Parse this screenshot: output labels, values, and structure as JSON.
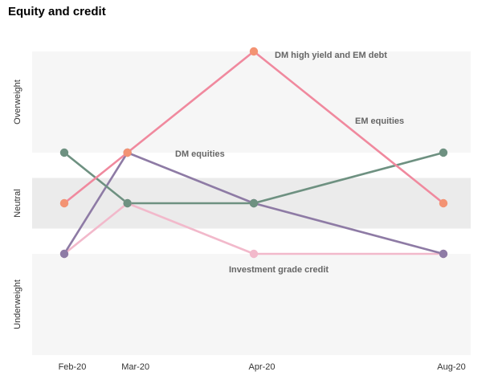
{
  "chart_data": {
    "type": "line",
    "title": "Equity and credit",
    "categories": [
      "Feb-20",
      "Mar-20",
      "Apr-20",
      "Aug-20"
    ],
    "category_positions": [
      0,
      1,
      3,
      6
    ],
    "bands": [
      {
        "label": "Overweight",
        "range": [
          1,
          3
        ]
      },
      {
        "label": "Neutral",
        "range": [
          -0.5,
          0.5
        ]
      },
      {
        "label": "Underweight",
        "range": [
          -3,
          -1
        ]
      }
    ],
    "ylim": [
      -3,
      3
    ],
    "series": [
      {
        "name": "DM high yield and EM debt",
        "color": "#f0899e",
        "marker": "#f39373",
        "points": [
          [
            0,
            0
          ],
          [
            1,
            1
          ],
          [
            3,
            3
          ],
          [
            6,
            0
          ]
        ]
      },
      {
        "name": "EM equities",
        "color": "#6e9181",
        "marker": "#6e9181",
        "points": [
          [
            0,
            1
          ],
          [
            1,
            0
          ],
          [
            3,
            0
          ],
          [
            6,
            1
          ]
        ]
      },
      {
        "name": "DM equities",
        "color": "#8e7ba5",
        "marker": "#8e7ba5",
        "points": [
          [
            0,
            -1
          ],
          [
            1,
            1
          ],
          [
            3,
            0
          ],
          [
            6,
            -1
          ]
        ]
      },
      {
        "name": "Investment grade credit",
        "color": "#f2b9cb",
        "marker": "#f2b9cb",
        "points": [
          [
            0,
            -1
          ],
          [
            1,
            0
          ],
          [
            3,
            -1
          ],
          [
            6,
            -1
          ]
        ]
      }
    ],
    "annotations": [
      {
        "text": "DM high yield and EM debt",
        "series": 0
      },
      {
        "text": "EM equities",
        "series": 1
      },
      {
        "text": "DM equities",
        "series": 2
      },
      {
        "text": "Investment grade credit",
        "series": 3
      }
    ]
  }
}
